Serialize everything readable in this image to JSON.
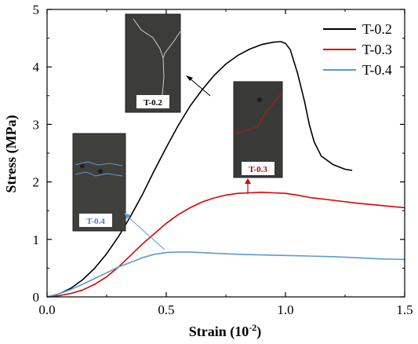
{
  "chart_data": {
    "type": "line",
    "xlabel": "Strain (10",
    "xlabel_sup": "-2",
    "xlabel_end": ")",
    "ylabel": "Stress (MPa)",
    "xlim": [
      0.0,
      1.5
    ],
    "ylim": [
      0,
      5
    ],
    "x_ticks": [
      0.0,
      0.5,
      1.0,
      1.5
    ],
    "x_tick_labels": [
      "0.0",
      "0.5",
      "1.0",
      "1.5"
    ],
    "y_ticks": [
      0,
      1,
      2,
      3,
      4,
      5
    ],
    "y_tick_labels": [
      "0",
      "1",
      "2",
      "3",
      "4",
      "5"
    ],
    "grid": false,
    "legend_position": "top-right",
    "series": [
      {
        "name": "T-0.2",
        "color": "#000000",
        "points": [
          [
            0,
            0
          ],
          [
            0.05,
            0.05
          ],
          [
            0.1,
            0.15
          ],
          [
            0.15,
            0.3
          ],
          [
            0.2,
            0.5
          ],
          [
            0.25,
            0.75
          ],
          [
            0.3,
            1.05
          ],
          [
            0.35,
            1.4
          ],
          [
            0.4,
            1.78
          ],
          [
            0.45,
            2.2
          ],
          [
            0.5,
            2.6
          ],
          [
            0.55,
            2.98
          ],
          [
            0.6,
            3.32
          ],
          [
            0.65,
            3.6
          ],
          [
            0.7,
            3.85
          ],
          [
            0.75,
            4.05
          ],
          [
            0.8,
            4.2
          ],
          [
            0.85,
            4.31
          ],
          [
            0.9,
            4.39
          ],
          [
            0.95,
            4.43
          ],
          [
            0.98,
            4.44
          ],
          [
            1.0,
            4.41
          ],
          [
            1.02,
            4.3
          ],
          [
            1.05,
            3.9
          ],
          [
            1.08,
            3.4
          ],
          [
            1.1,
            3.0
          ],
          [
            1.12,
            2.7
          ],
          [
            1.15,
            2.45
          ],
          [
            1.2,
            2.3
          ],
          [
            1.25,
            2.22
          ],
          [
            1.28,
            2.2
          ]
        ]
      },
      {
        "name": "T-0.3",
        "color": "#e00000",
        "points": [
          [
            0,
            0
          ],
          [
            0.05,
            0.02
          ],
          [
            0.1,
            0.06
          ],
          [
            0.15,
            0.12
          ],
          [
            0.2,
            0.22
          ],
          [
            0.25,
            0.35
          ],
          [
            0.3,
            0.52
          ],
          [
            0.35,
            0.72
          ],
          [
            0.4,
            0.92
          ],
          [
            0.45,
            1.1
          ],
          [
            0.5,
            1.28
          ],
          [
            0.55,
            1.43
          ],
          [
            0.6,
            1.55
          ],
          [
            0.65,
            1.65
          ],
          [
            0.7,
            1.72
          ],
          [
            0.75,
            1.77
          ],
          [
            0.8,
            1.8
          ],
          [
            0.85,
            1.81
          ],
          [
            0.9,
            1.82
          ],
          [
            0.95,
            1.81
          ],
          [
            1.0,
            1.8
          ],
          [
            1.05,
            1.77
          ],
          [
            1.1,
            1.73
          ],
          [
            1.2,
            1.68
          ],
          [
            1.3,
            1.63
          ],
          [
            1.4,
            1.59
          ],
          [
            1.5,
            1.55
          ]
        ]
      },
      {
        "name": "T-0.4",
        "color": "#5b9bd5",
        "points": [
          [
            0,
            0
          ],
          [
            0.05,
            0.05
          ],
          [
            0.1,
            0.13
          ],
          [
            0.15,
            0.22
          ],
          [
            0.2,
            0.32
          ],
          [
            0.25,
            0.42
          ],
          [
            0.3,
            0.52
          ],
          [
            0.35,
            0.6
          ],
          [
            0.4,
            0.68
          ],
          [
            0.45,
            0.74
          ],
          [
            0.5,
            0.77
          ],
          [
            0.55,
            0.78
          ],
          [
            0.6,
            0.78
          ],
          [
            0.7,
            0.76
          ],
          [
            0.8,
            0.74
          ],
          [
            0.9,
            0.73
          ],
          [
            1.0,
            0.72
          ],
          [
            1.1,
            0.71
          ],
          [
            1.2,
            0.7
          ],
          [
            1.3,
            0.68
          ],
          [
            1.4,
            0.66
          ],
          [
            1.5,
            0.65
          ]
        ]
      }
    ],
    "insets": [
      {
        "label": "T-0.2",
        "label_color": "#000000",
        "series_index": 0
      },
      {
        "label": "T-0.3",
        "label_color": "#c00000",
        "series_index": 1
      },
      {
        "label": "T-0.4",
        "label_color": "#4a7fc0",
        "series_index": 2
      }
    ]
  }
}
